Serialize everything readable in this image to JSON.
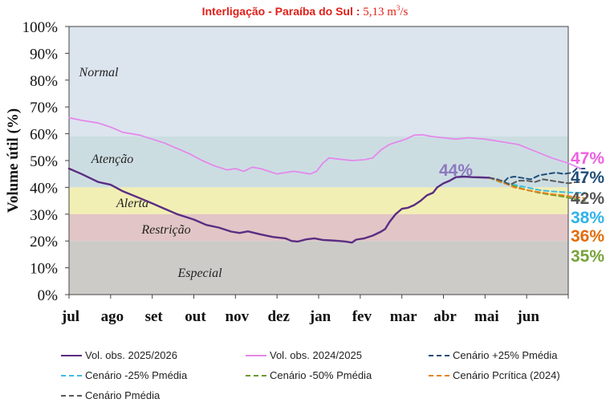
{
  "header": {
    "title_main": "Interligação - Paraíba do Sul :",
    "title_value": "5,13 m",
    "title_unit_sup": "3",
    "title_unit_tail": "/s"
  },
  "chart_data": {
    "type": "line",
    "ylabel": "Volume útil (%)",
    "ylim": [
      0,
      100
    ],
    "yticks": [
      "0%",
      "10%",
      "20%",
      "30%",
      "40%",
      "50%",
      "60%",
      "70%",
      "80%",
      "90%",
      "100%"
    ],
    "xlim": [
      0,
      12
    ],
    "xticks": [
      "jul",
      "ago",
      "set",
      "out",
      "nov",
      "dez",
      "jan",
      "fev",
      "mar",
      "abr",
      "mai",
      "jun"
    ],
    "grid": false,
    "zones": [
      {
        "label": "Normal",
        "from": 59,
        "to": 100,
        "color": "#dce4ee"
      },
      {
        "label": "Atenção",
        "from": 40,
        "to": 59,
        "color": "#ccdde2"
      },
      {
        "label": "Alerta",
        "from": 30,
        "to": 40,
        "color": "#f2efb4"
      },
      {
        "label": "Restrição",
        "from": 20,
        "to": 30,
        "color": "#e2c5c6"
      },
      {
        "label": "Especial",
        "from": 0,
        "to": 20,
        "color": "#cdcbc8"
      }
    ],
    "annotation_current": "44%",
    "series": [
      {
        "name": "Vol. obs. 2025/2026",
        "color": "#5a2d82",
        "dash": false,
        "width": 2.4,
        "points": [
          [
            0,
            47
          ],
          [
            0.3,
            45
          ],
          [
            0.7,
            42
          ],
          [
            1,
            41
          ],
          [
            1.3,
            38.5
          ],
          [
            1.7,
            36
          ],
          [
            2,
            34
          ],
          [
            2.3,
            32
          ],
          [
            2.6,
            30
          ],
          [
            2.8,
            29
          ],
          [
            3,
            28
          ],
          [
            3.3,
            26
          ],
          [
            3.6,
            25
          ],
          [
            3.9,
            23.5
          ],
          [
            4.1,
            23
          ],
          [
            4.3,
            23.6
          ],
          [
            4.6,
            22.5
          ],
          [
            4.9,
            21.5
          ],
          [
            5.2,
            21
          ],
          [
            5.35,
            20
          ],
          [
            5.5,
            19.8
          ],
          [
            5.7,
            20.6
          ],
          [
            5.9,
            21
          ],
          [
            6.1,
            20.4
          ],
          [
            6.3,
            20.2
          ],
          [
            6.5,
            20
          ],
          [
            6.65,
            19.8
          ],
          [
            6.8,
            19.4
          ],
          [
            6.9,
            20.5
          ],
          [
            7.1,
            21
          ],
          [
            7.3,
            22
          ],
          [
            7.5,
            23.5
          ],
          [
            7.6,
            24.5
          ],
          [
            7.7,
            27
          ],
          [
            7.85,
            30
          ],
          [
            8,
            32
          ],
          [
            8.15,
            32.4
          ],
          [
            8.3,
            33.4
          ],
          [
            8.45,
            35
          ],
          [
            8.6,
            37
          ],
          [
            8.75,
            38
          ],
          [
            8.85,
            40
          ],
          [
            9,
            41.5
          ],
          [
            9.15,
            42.5
          ],
          [
            9.3,
            43.8
          ],
          [
            9.5,
            44
          ],
          [
            9.7,
            43.8
          ],
          [
            9.9,
            43.7
          ],
          [
            10.1,
            43.6
          ]
        ]
      },
      {
        "name": "Vol. obs. 2024/2025",
        "color": "#e389ea",
        "dash": false,
        "width": 1.8,
        "points": [
          [
            0,
            66
          ],
          [
            0.3,
            65
          ],
          [
            0.7,
            64
          ],
          [
            1,
            62.5
          ],
          [
            1.3,
            60.5
          ],
          [
            1.7,
            59.5
          ],
          [
            2,
            58
          ],
          [
            2.3,
            56.5
          ],
          [
            2.6,
            54.5
          ],
          [
            2.9,
            52.5
          ],
          [
            3.2,
            50
          ],
          [
            3.5,
            48
          ],
          [
            3.8,
            46.5
          ],
          [
            4,
            47
          ],
          [
            4.2,
            46
          ],
          [
            4.4,
            47.5
          ],
          [
            4.6,
            47
          ],
          [
            4.8,
            46
          ],
          [
            5,
            45
          ],
          [
            5.2,
            45.5
          ],
          [
            5.4,
            46
          ],
          [
            5.6,
            45.5
          ],
          [
            5.8,
            45
          ],
          [
            5.95,
            46
          ],
          [
            6.1,
            49
          ],
          [
            6.25,
            51
          ],
          [
            6.5,
            50.5
          ],
          [
            6.8,
            50
          ],
          [
            7.1,
            50.3
          ],
          [
            7.3,
            51
          ],
          [
            7.5,
            54
          ],
          [
            7.7,
            56
          ],
          [
            7.9,
            57
          ],
          [
            8.1,
            58
          ],
          [
            8.3,
            59.5
          ],
          [
            8.5,
            59.6
          ],
          [
            8.7,
            59
          ],
          [
            9,
            58.5
          ],
          [
            9.3,
            58
          ],
          [
            9.6,
            58.5
          ],
          [
            10,
            58
          ],
          [
            10.4,
            57
          ],
          [
            10.8,
            56
          ],
          [
            11.2,
            53.5
          ],
          [
            11.6,
            51
          ],
          [
            12,
            49
          ],
          [
            12.3,
            47
          ]
        ]
      },
      {
        "name": "Cenário +25% Pmédia",
        "color": "#1f4e79",
        "dash": true,
        "width": 2,
        "points": [
          [
            10.1,
            43.6
          ],
          [
            10.3,
            43
          ],
          [
            10.45,
            42
          ],
          [
            10.55,
            43.5
          ],
          [
            10.7,
            44
          ],
          [
            10.9,
            43.5
          ],
          [
            11.1,
            43
          ],
          [
            11.3,
            44.5
          ],
          [
            11.5,
            45
          ],
          [
            11.7,
            45.5
          ],
          [
            11.9,
            45
          ],
          [
            12.1,
            45.5
          ],
          [
            12.2,
            47
          ],
          [
            12.4,
            47
          ]
        ]
      },
      {
        "name": "Cenário -25% Pmédia",
        "color": "#3bbce6",
        "dash": true,
        "width": 2,
        "points": [
          [
            10.1,
            43.6
          ],
          [
            10.4,
            42
          ],
          [
            10.7,
            41
          ],
          [
            11,
            40
          ],
          [
            11.3,
            39
          ],
          [
            11.6,
            38.5
          ],
          [
            11.9,
            38.2
          ],
          [
            12.2,
            38
          ],
          [
            12.4,
            38
          ]
        ]
      },
      {
        "name": "Cenário -50% Pmédia",
        "color": "#6a9a2e",
        "dash": true,
        "width": 2,
        "points": [
          [
            10.1,
            43.6
          ],
          [
            10.4,
            41.8
          ],
          [
            10.7,
            40.5
          ],
          [
            11,
            39
          ],
          [
            11.3,
            38
          ],
          [
            11.6,
            37.2
          ],
          [
            11.9,
            36.5
          ],
          [
            12.2,
            35.5
          ],
          [
            12.4,
            35
          ]
        ]
      },
      {
        "name": "Cenário Pcrítica (2024)",
        "color": "#e8821e",
        "dash": true,
        "width": 2,
        "points": [
          [
            10.1,
            43.6
          ],
          [
            10.4,
            42
          ],
          [
            10.7,
            40
          ],
          [
            11,
            39
          ],
          [
            11.3,
            38.2
          ],
          [
            11.6,
            37.5
          ],
          [
            11.9,
            37
          ],
          [
            12.2,
            36.3
          ],
          [
            12.4,
            36
          ]
        ]
      },
      {
        "name": "Cenário Pmédia",
        "color": "#595959",
        "dash": true,
        "width": 2,
        "points": [
          [
            10.1,
            43.6
          ],
          [
            10.4,
            42.5
          ],
          [
            10.6,
            41
          ],
          [
            10.8,
            42.5
          ],
          [
            11,
            42.5
          ],
          [
            11.2,
            42
          ],
          [
            11.4,
            43
          ],
          [
            11.6,
            42.5
          ],
          [
            11.8,
            42
          ],
          [
            12,
            41.5
          ],
          [
            12.2,
            42
          ],
          [
            12.4,
            42
          ]
        ]
      }
    ],
    "end_labels": [
      {
        "text": "47%",
        "color": "#f060e0",
        "series": "Vol. obs. 2024/2025"
      },
      {
        "text": "47%",
        "color": "#1f4e79",
        "series": "Cenário +25% Pmédia"
      },
      {
        "text": "42%",
        "color": "#555555",
        "series": "Cenário Pmédia"
      },
      {
        "text": "38%",
        "color": "#2fb3ea",
        "series": "Cenário -25% Pmédia"
      },
      {
        "text": "36%",
        "color": "#e36c0a",
        "series": "Cenário Pcrítica (2024)"
      },
      {
        "text": "35%",
        "color": "#77a33a",
        "series": "Cenário -50% Pmédia"
      }
    ]
  }
}
